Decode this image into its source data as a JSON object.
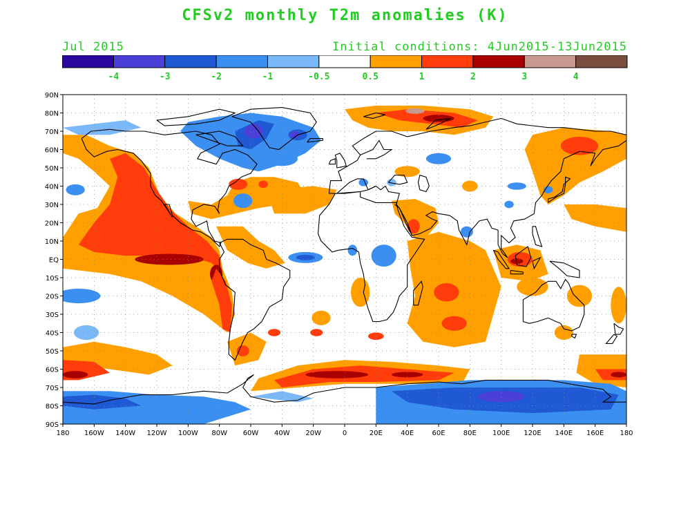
{
  "title": "CFSv2 monthly T2m anomalies (K)",
  "valid_month": "Jul 2015",
  "initial_conditions": "Initial conditions: 4Jun2015-13Jun2015",
  "text_color": "#22cc22",
  "colorbar": {
    "bins": [
      {
        "color": "#2a0a9e"
      },
      {
        "color": "#4a3fd6"
      },
      {
        "color": "#1f5ad4"
      },
      {
        "color": "#3b8ff0"
      },
      {
        "color": "#7ab8f8"
      },
      {
        "color": "#ffffff"
      },
      {
        "color": "#ffa000"
      },
      {
        "color": "#ff3c0a"
      },
      {
        "color": "#a80000"
      },
      {
        "color": "#c89a90"
      },
      {
        "color": "#7a4e3e"
      }
    ],
    "tick_labels": [
      "-4",
      "-3",
      "-2",
      "-1",
      "-0.5",
      "0.5",
      "1",
      "2",
      "3",
      "4"
    ]
  },
  "map": {
    "lat_labels": [
      "90N",
      "80N",
      "70N",
      "60N",
      "50N",
      "40N",
      "30N",
      "20N",
      "10N",
      "EQ",
      "10S",
      "20S",
      "30S",
      "40S",
      "50S",
      "60S",
      "70S",
      "80S",
      "90S"
    ],
    "lon_labels": [
      "180",
      "160W",
      "140W",
      "120W",
      "100W",
      "80W",
      "60W",
      "40W",
      "20W",
      "0",
      "20E",
      "40E",
      "60E",
      "80E",
      "100E",
      "120E",
      "140E",
      "160E",
      "180"
    ]
  },
  "anomaly_regions": [
    {
      "name": "Northeast Pacific warm",
      "value": 1.5,
      "lon": [
        -170,
        -110
      ],
      "lat": [
        15,
        60
      ]
    },
    {
      "name": "Equatorial Pacific El Nino",
      "value": 2.5,
      "lon": [
        -150,
        -80
      ],
      "lat": [
        -5,
        5
      ]
    },
    {
      "name": "Peru coast warm",
      "value": 2.5,
      "lon": [
        -85,
        -75
      ],
      "lat": [
        -15,
        -5
      ]
    },
    {
      "name": "Greenland and Labrador cold",
      "value": -2.5,
      "lon": [
        -75,
        -25
      ],
      "lat": [
        60,
        75
      ]
    },
    {
      "name": "Arctic Siberia warm",
      "value": 2,
      "lon": [
        10,
        90
      ],
      "lat": [
        70,
        82
      ]
    },
    {
      "name": "South Atlantic Southern Ocean warm",
      "value": 2,
      "lon": [
        -40,
        80
      ],
      "lat": [
        -70,
        -55
      ]
    },
    {
      "name": "Antarctica cold",
      "value": -1.5,
      "lon": [
        20,
        170
      ],
      "lat": [
        -85,
        -68
      ]
    },
    {
      "name": "Indian Ocean warm",
      "value": 1,
      "lon": [
        40,
        90
      ],
      "lat": [
        -45,
        10
      ]
    }
  ]
}
